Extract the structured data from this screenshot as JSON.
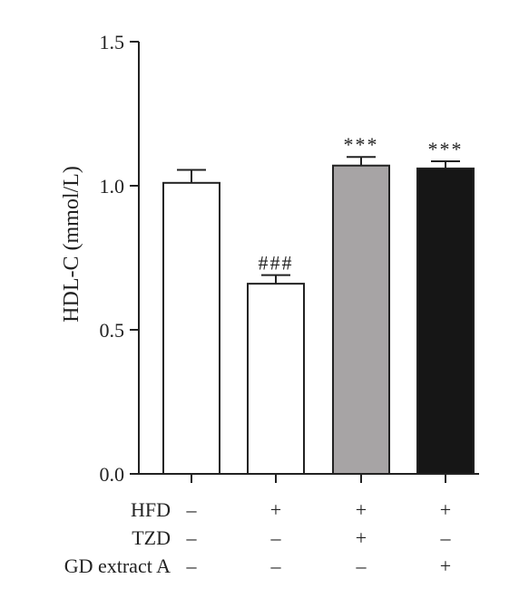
{
  "chart_data": {
    "type": "bar",
    "title": "",
    "xlabel": "",
    "ylabel": "HDL-C (mmol/L)",
    "ylim": [
      0,
      1.5
    ],
    "yticks": [
      0.0,
      0.5,
      1.0,
      1.5
    ],
    "ytick_labels": [
      "0.0",
      "0.5",
      "1.0",
      "1.5"
    ],
    "grid": false,
    "legend": "none",
    "bars": [
      {
        "value": 1.01,
        "error": 0.045,
        "color": "#ffffff",
        "annotation": ""
      },
      {
        "value": 0.66,
        "error": 0.03,
        "color": "#ffffff",
        "annotation": "###"
      },
      {
        "value": 1.07,
        "error": 0.03,
        "color": "#a7a4a5",
        "annotation": "***"
      },
      {
        "value": 1.06,
        "error": 0.025,
        "color": "#161616",
        "annotation": "***"
      }
    ],
    "conditions": [
      {
        "label": "HFD",
        "signs": [
          "–",
          "+",
          "+",
          "+"
        ]
      },
      {
        "label": "TZD",
        "signs": [
          "–",
          "–",
          "+",
          "–"
        ]
      },
      {
        "label": "GD extract A",
        "signs": [
          "–",
          "–",
          "–",
          "+"
        ]
      }
    ]
  }
}
